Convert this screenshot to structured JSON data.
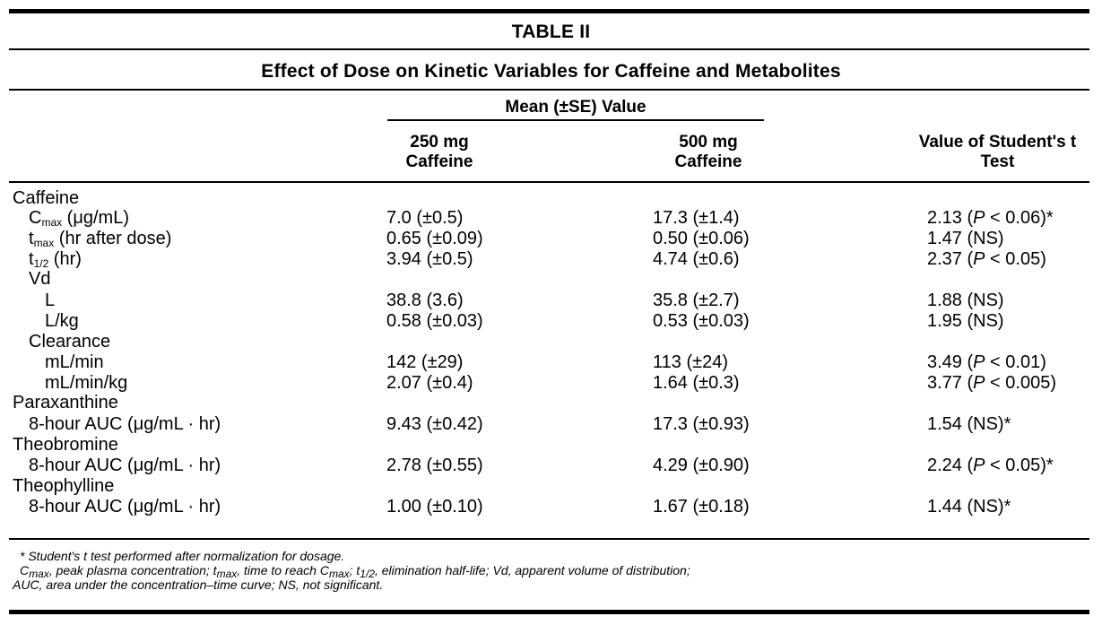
{
  "table": {
    "title": "TABLE II",
    "subtitle": "Effect of Dose on Kinetic Variables for Caffeine and Metabolites",
    "group_header": "Mean (±SE) Value",
    "col250_line1": "250 mg",
    "col250_line2": "Caffeine",
    "col500_line1": "500 mg",
    "col500_line2": "Caffeine",
    "coltest_line1": "Value of Student's t",
    "coltest_line2": "Test",
    "rows": {
      "caffeine": {
        "label": "Caffeine"
      },
      "cmax": {
        "label_main": "C",
        "label_sub": "max",
        "label_rest": " (μg/mL)",
        "v250": "7.0 (±0.5)",
        "v500": "17.3 (±1.4)",
        "test_pre": "2.13 (",
        "test_p": "P",
        "test_post": " < 0.06)*"
      },
      "tmax": {
        "label_main": "t",
        "label_sub": "max",
        "label_rest": " (hr after dose)",
        "v250": "0.65 (±0.09)",
        "v500": "0.50 (±0.06)",
        "test": "1.47 (NS)"
      },
      "thalf": {
        "label_main": "t",
        "label_sub": "1/2",
        "label_rest": " (hr)",
        "v250": "3.94 (±0.5)",
        "v500": "4.74 (±0.6)",
        "test_pre": "2.37 (",
        "test_p": "P",
        "test_post": " < 0.05)"
      },
      "vd": {
        "label": "Vd"
      },
      "vd_l": {
        "label": "L",
        "v250": "38.8 (3.6)",
        "v500": "35.8 (±2.7)",
        "test": "1.88 (NS)"
      },
      "vd_lkg": {
        "label": "L/kg",
        "v250": "0.58 (±0.03)",
        "v500": "0.53 (±0.03)",
        "test": "1.95 (NS)"
      },
      "clearance": {
        "label": "Clearance"
      },
      "cl_mlmin": {
        "label": "mL/min",
        "v250": "142 (±29)",
        "v500": "113 (±24)",
        "test_pre": "3.49 (",
        "test_p": "P",
        "test_post": " < 0.01)"
      },
      "cl_mlminkg": {
        "label": "mL/min/kg",
        "v250": "2.07 (±0.4)",
        "v500": "1.64 (±0.3)",
        "test_pre": "3.77 (",
        "test_p": "P",
        "test_post": " < 0.005)"
      },
      "paraxanthine": {
        "label": "Paraxanthine"
      },
      "para_auc": {
        "label": "8-hour AUC (μg/mL · hr)",
        "v250": "9.43 (±0.42)",
        "v500": "17.3 (±0.93)",
        "test": "1.54 (NS)*"
      },
      "theobromine": {
        "label": "Theobromine"
      },
      "theob_auc": {
        "label": "8-hour AUC (μg/mL · hr)",
        "v250": "2.78 (±0.55)",
        "v500": "4.29 (±0.90)",
        "test_pre": "2.24 (",
        "test_p": "P",
        "test_post": " < 0.05)*"
      },
      "theophylline": {
        "label": "Theophylline"
      },
      "theop_auc": {
        "label": "8-hour AUC (μg/mL · hr)",
        "v250": "1.00 (±0.10)",
        "v500": "1.67 (±0.18)",
        "test": "1.44 (NS)*"
      }
    },
    "footnotes": {
      "line1": "* Student's t test performed after normalization for dosage.",
      "line2_a": "C",
      "line2_a_sub": "max",
      "line2_b": ", peak plasma concentration; t",
      "line2_b_sub": "max",
      "line2_c": ", time to reach C",
      "line2_c_sub": "max",
      "line2_d": "; t",
      "line2_d_sub": "1/2",
      "line2_e": ", elimination half-life; Vd, apparent volume of distribution;",
      "line3": "AUC, area under the concentration–time curve; NS, not significant."
    }
  }
}
